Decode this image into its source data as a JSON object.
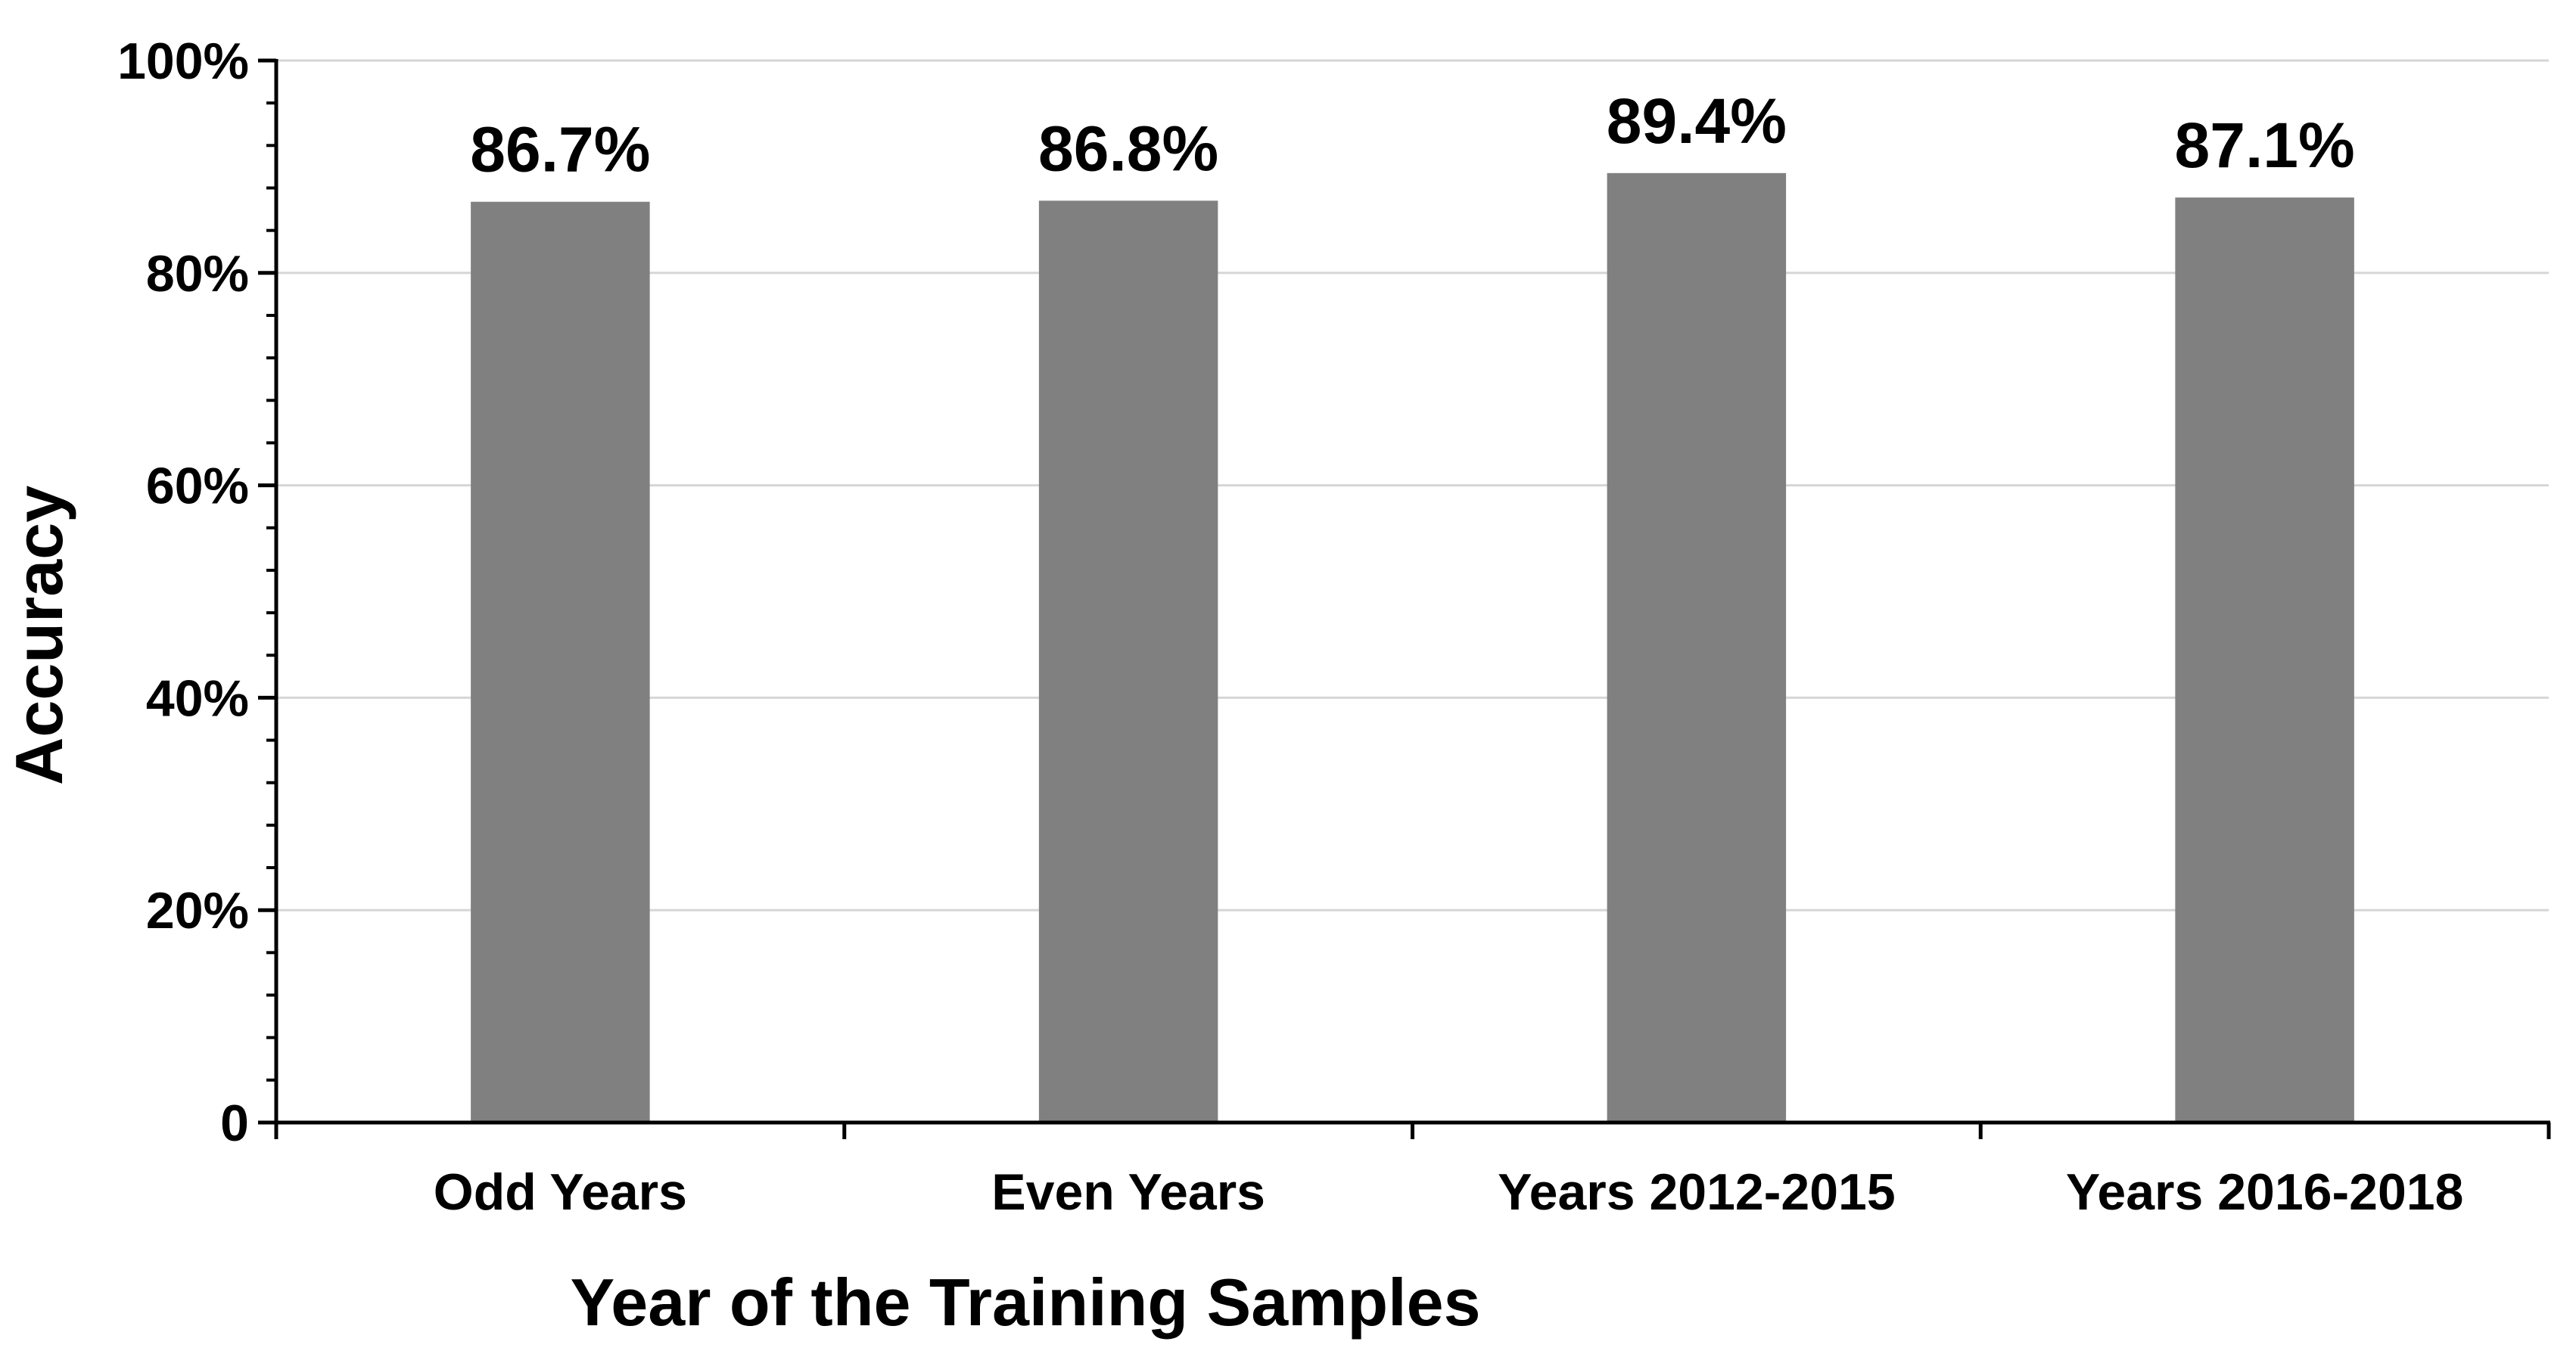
{
  "chart_data": {
    "type": "bar",
    "categories": [
      "Odd Years",
      "Even Years",
      "Years 2012-2015",
      "Years 2016-2018"
    ],
    "values": [
      86.7,
      86.8,
      89.4,
      87.1
    ],
    "data_labels": [
      "86.7%",
      "86.8%",
      "89.4%",
      "87.1%"
    ],
    "xlabel": "Year of the Training Samples",
    "ylabel": "Accuracy",
    "ylim": [
      0,
      100
    ],
    "y_ticks": [
      0,
      20,
      40,
      60,
      80,
      100
    ],
    "y_tick_labels": [
      "0",
      "20%",
      "40%",
      "60%",
      "80%",
      "100%"
    ],
    "grid": true,
    "colors": {
      "bar": "#808080",
      "grid": "#d6d6d6",
      "axis": "#000000"
    }
  }
}
